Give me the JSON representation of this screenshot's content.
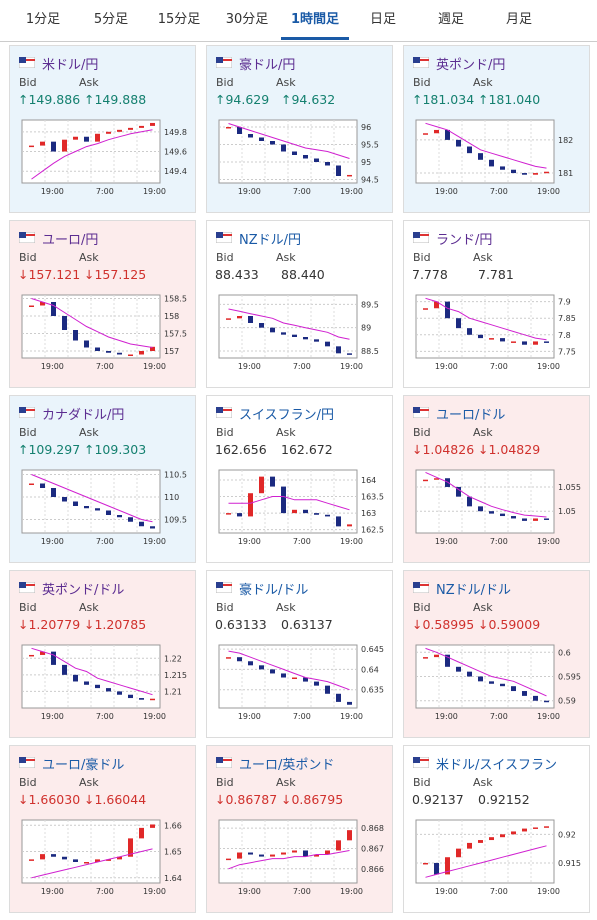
{
  "tabs": [
    "1分足",
    "5分足",
    "15分足",
    "30分足",
    "1時間足",
    "日足",
    "週足",
    "月足"
  ],
  "selected_tab": 4,
  "bid_label": "Bid",
  "ask_label": "Ask",
  "xlabels": [
    "19:00",
    "7:00",
    "19:00"
  ],
  "cards": [
    {
      "name": "米ドル/円",
      "title_color": "#5c2d91",
      "background": "#eaf4fb",
      "bid": "↑149.886",
      "ask": "↑149.888",
      "price_color": "#14806f",
      "ylim": [
        149.28,
        149.92
      ],
      "yticks": [
        149.4,
        149.6,
        149.8
      ],
      "closes": [
        149.66,
        149.7,
        149.6,
        149.72,
        149.75,
        149.7,
        149.78,
        149.8,
        149.82,
        149.84,
        149.86,
        149.89
      ],
      "ma": [
        149.32,
        149.4,
        149.48,
        149.55,
        149.6,
        149.65,
        149.68,
        149.72,
        149.75,
        149.78,
        149.8,
        149.82
      ]
    },
    {
      "name": "豪ドル/円",
      "title_color": "#5c2d91",
      "background": "#eaf4fb",
      "bid": "↑94.629",
      "ask": "↑94.632",
      "price_color": "#14806f",
      "ylim": [
        94.4,
        96.2
      ],
      "yticks": [
        94.5,
        95,
        95.5,
        96
      ],
      "closes": [
        96.0,
        95.8,
        95.7,
        95.6,
        95.5,
        95.3,
        95.2,
        95.1,
        95.0,
        94.9,
        94.6,
        94.63
      ],
      "ma": [
        96.1,
        96.0,
        95.9,
        95.8,
        95.7,
        95.6,
        95.5,
        95.4,
        95.35,
        95.3,
        95.2,
        95.1
      ]
    },
    {
      "name": "英ポンド/円",
      "title_color": "#5c2d91",
      "background": "#eaf4fb",
      "bid": "↑181.034",
      "ask": "↑181.040",
      "price_color": "#14806f",
      "ylim": [
        180.7,
        182.6
      ],
      "yticks": [
        181,
        182
      ],
      "closes": [
        182.2,
        182.3,
        182.0,
        181.8,
        181.6,
        181.4,
        181.2,
        181.1,
        181.0,
        180.95,
        181.0,
        181.04
      ],
      "ma": [
        182.5,
        182.4,
        182.3,
        182.1,
        181.9,
        181.7,
        181.6,
        181.5,
        181.4,
        181.3,
        181.2,
        181.15
      ]
    },
    {
      "name": "ユーロ/円",
      "title_color": "#5c2d91",
      "background": "#fcecec",
      "bid": "↓157.121",
      "ask": "↓157.125",
      "price_color": "#d0312d",
      "ylim": [
        156.8,
        158.6
      ],
      "yticks": [
        157,
        157.5,
        158,
        158.5
      ],
      "closes": [
        158.3,
        158.4,
        158.0,
        157.6,
        157.3,
        157.1,
        157.0,
        156.95,
        156.9,
        156.9,
        157.0,
        157.12
      ],
      "ma": [
        158.5,
        158.4,
        158.3,
        158.1,
        157.9,
        157.7,
        157.55,
        157.4,
        157.3,
        157.2,
        157.15,
        157.1
      ]
    },
    {
      "name": "NZドル/円",
      "title_color": "#1a5aa6",
      "background": "#ffffff",
      "bid": "88.433",
      "ask": "88.440",
      "price_color": "#333333",
      "ylim": [
        88.35,
        89.7
      ],
      "yticks": [
        88.5,
        89,
        89.5
      ],
      "closes": [
        89.2,
        89.25,
        89.1,
        89.0,
        88.9,
        88.85,
        88.8,
        88.75,
        88.7,
        88.6,
        88.45,
        88.43
      ],
      "ma": [
        89.4,
        89.35,
        89.3,
        89.25,
        89.2,
        89.1,
        89.05,
        89.0,
        88.95,
        88.9,
        88.8,
        88.75
      ]
    },
    {
      "name": "ランド/円",
      "title_color": "#5c2d91",
      "background": "#ffffff",
      "bid": "7.778",
      "ask": "7.781",
      "price_color": "#333333",
      "ylim": [
        7.73,
        7.92
      ],
      "yticks": [
        7.75,
        7.8,
        7.85,
        7.9
      ],
      "closes": [
        7.88,
        7.9,
        7.85,
        7.82,
        7.8,
        7.79,
        7.79,
        7.78,
        7.78,
        7.77,
        7.78,
        7.778
      ],
      "ma": [
        7.91,
        7.9,
        7.88,
        7.87,
        7.85,
        7.84,
        7.83,
        7.82,
        7.81,
        7.8,
        7.79,
        7.785
      ]
    },
    {
      "name": "カナダドル/円",
      "title_color": "#5c2d91",
      "background": "#eaf4fb",
      "bid": "↑109.297",
      "ask": "↑109.303",
      "price_color": "#14806f",
      "ylim": [
        109.2,
        110.6
      ],
      "yticks": [
        109.5,
        110,
        110.5
      ],
      "closes": [
        110.3,
        110.2,
        110.0,
        109.9,
        109.8,
        109.75,
        109.7,
        109.6,
        109.55,
        109.45,
        109.35,
        109.3
      ],
      "ma": [
        110.5,
        110.4,
        110.3,
        110.2,
        110.1,
        110.0,
        109.9,
        109.8,
        109.7,
        109.6,
        109.5,
        109.45
      ]
    },
    {
      "name": "スイスフラン/円",
      "title_color": "#1a5aa6",
      "background": "#ffffff",
      "bid": "162.656",
      "ask": "162.672",
      "price_color": "#333333",
      "ylim": [
        162.4,
        164.3
      ],
      "yticks": [
        162.5,
        163,
        163.5,
        164
      ],
      "closes": [
        163.0,
        162.9,
        163.6,
        164.1,
        163.8,
        163.0,
        163.1,
        163.0,
        162.95,
        162.9,
        162.6,
        162.66
      ],
      "ma": [
        163.3,
        163.3,
        163.3,
        163.4,
        163.5,
        163.5,
        163.4,
        163.4,
        163.4,
        163.3,
        163.2,
        163.1
      ]
    },
    {
      "name": "ユーロ/ドル",
      "title_color": "#1a5aa6",
      "background": "#fcecec",
      "bid": "↓1.04826",
      "ask": "↓1.04829",
      "price_color": "#d0312d",
      "ylim": [
        1.0455,
        1.0585
      ],
      "yticks": [
        1.05,
        1.055
      ],
      "closes": [
        1.0565,
        1.0568,
        1.055,
        1.053,
        1.051,
        1.05,
        1.0495,
        1.049,
        1.0485,
        1.048,
        1.0485,
        1.0483
      ],
      "ma": [
        1.058,
        1.057,
        1.056,
        1.0545,
        1.053,
        1.052,
        1.051,
        1.0503,
        1.0497,
        1.0492,
        1.049,
        1.0488
      ]
    },
    {
      "name": "英ポンド/ドル",
      "title_color": "#5c2d91",
      "background": "#fcecec",
      "bid": "↓1.20779",
      "ask": "↓1.20785",
      "price_color": "#d0312d",
      "ylim": [
        1.205,
        1.224
      ],
      "yticks": [
        1.21,
        1.215,
        1.22
      ],
      "closes": [
        1.221,
        1.222,
        1.218,
        1.215,
        1.213,
        1.212,
        1.211,
        1.21,
        1.209,
        1.208,
        1.2075,
        1.2078
      ],
      "ma": [
        1.223,
        1.222,
        1.221,
        1.219,
        1.217,
        1.216,
        1.214,
        1.213,
        1.212,
        1.211,
        1.21,
        1.209
      ]
    },
    {
      "name": "豪ドル/ドル",
      "title_color": "#1a5aa6",
      "background": "#ffffff",
      "bid": "0.63133",
      "ask": "0.63137",
      "price_color": "#333333",
      "ylim": [
        0.6305,
        0.646
      ],
      "yticks": [
        0.635,
        0.64,
        0.645
      ],
      "closes": [
        0.643,
        0.642,
        0.641,
        0.64,
        0.639,
        0.638,
        0.638,
        0.637,
        0.636,
        0.634,
        0.632,
        0.6313
      ],
      "ma": [
        0.6445,
        0.644,
        0.643,
        0.642,
        0.641,
        0.64,
        0.639,
        0.638,
        0.6375,
        0.637,
        0.636,
        0.635
      ]
    },
    {
      "name": "NZドル/ドル",
      "title_color": "#1a5aa6",
      "background": "#fcecec",
      "bid": "↓0.58995",
      "ask": "↓0.59009",
      "price_color": "#d0312d",
      "ylim": [
        0.5885,
        0.6015
      ],
      "yticks": [
        0.59,
        0.595,
        0.6
      ],
      "closes": [
        0.599,
        0.5995,
        0.597,
        0.596,
        0.595,
        0.594,
        0.5935,
        0.593,
        0.592,
        0.591,
        0.59,
        0.58995
      ],
      "ma": [
        0.6008,
        0.6,
        0.599,
        0.598,
        0.597,
        0.596,
        0.595,
        0.5945,
        0.594,
        0.593,
        0.592,
        0.591
      ]
    },
    {
      "name": "ユーロ/豪ドル",
      "title_color": "#1a5aa6",
      "background": "#fcecec",
      "bid": "↓1.66030",
      "ask": "↓1.66044",
      "price_color": "#d0312d",
      "ylim": [
        1.638,
        1.662
      ],
      "yticks": [
        1.64,
        1.65,
        1.66
      ],
      "closes": [
        1.647,
        1.649,
        1.648,
        1.647,
        1.646,
        1.646,
        1.647,
        1.647,
        1.648,
        1.655,
        1.659,
        1.6603
      ],
      "ma": [
        1.64,
        1.641,
        1.642,
        1.643,
        1.644,
        1.645,
        1.646,
        1.647,
        1.648,
        1.649,
        1.65,
        1.651
      ]
    },
    {
      "name": "ユーロ/英ポンド",
      "title_color": "#1a5aa6",
      "background": "#fcecec",
      "bid": "↓0.86787",
      "ask": "↓0.86795",
      "price_color": "#d0312d",
      "ylim": [
        0.8653,
        0.8684
      ],
      "yticks": [
        0.866,
        0.867,
        0.868
      ],
      "closes": [
        0.8665,
        0.8668,
        0.8667,
        0.8666,
        0.8667,
        0.8668,
        0.8669,
        0.8666,
        0.8667,
        0.8669,
        0.8674,
        0.8679
      ],
      "ma": [
        0.866,
        0.8662,
        0.8663,
        0.8664,
        0.8665,
        0.8665,
        0.8666,
        0.8666,
        0.8667,
        0.8667,
        0.8668,
        0.8669
      ]
    },
    {
      "name": "米ドル/スイスフラン",
      "title_color": "#1a5aa6",
      "background": "#ffffff",
      "bid": "0.92137",
      "ask": "0.92152",
      "price_color": "#333333",
      "ylim": [
        0.9115,
        0.9225
      ],
      "yticks": [
        0.915,
        0.92
      ],
      "closes": [
        0.915,
        0.913,
        0.916,
        0.9175,
        0.9185,
        0.919,
        0.9195,
        0.92,
        0.9205,
        0.921,
        0.9212,
        0.9214
      ],
      "ma": [
        0.9125,
        0.913,
        0.9135,
        0.914,
        0.9145,
        0.915,
        0.9155,
        0.916,
        0.9165,
        0.917,
        0.9175,
        0.918
      ]
    }
  ]
}
